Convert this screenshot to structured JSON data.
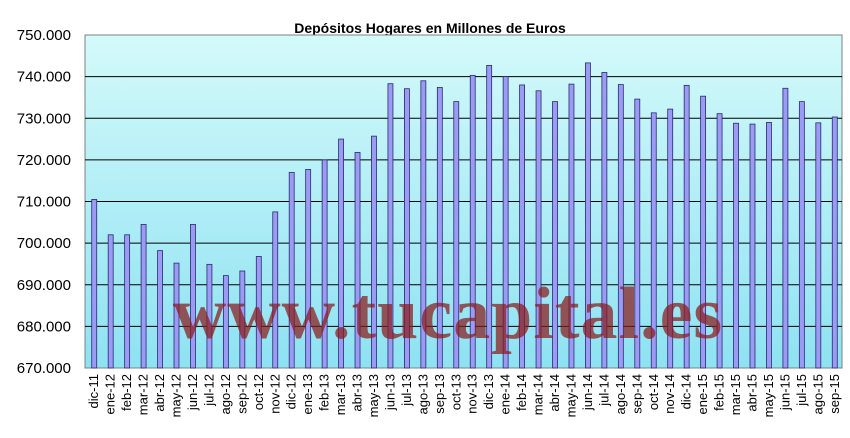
{
  "watermark": "www.tucapital.es",
  "colors": {
    "plot_bg_top": "#d4fafa",
    "plot_bg_bottom": "#8ee2f2",
    "bar_fill": "#9b9bf5",
    "bar_stroke": "#2a2a70",
    "watermark": "#8b1a1a"
  },
  "chart_data": {
    "type": "bar",
    "title": "Depósitos Hogares en Millones de Euros",
    "xlabel": "",
    "ylabel": "",
    "ylim": [
      670000,
      750000
    ],
    "yticks": [
      670000,
      680000,
      690000,
      700000,
      710000,
      720000,
      730000,
      740000,
      750000
    ],
    "ytick_labels": [
      "670.000",
      "680.000",
      "690.000",
      "700.000",
      "710.000",
      "720.000",
      "730.000",
      "740.000",
      "750.000"
    ],
    "grid": true,
    "legend": "none",
    "categories": [
      "dic-11",
      "ene-12",
      "feb-12",
      "mar-12",
      "abr-12",
      "may-12",
      "jun-12",
      "jul-12",
      "ago-12",
      "sep-12",
      "oct-12",
      "nov-12",
      "dic-12",
      "ene-13",
      "feb-13",
      "mar-13",
      "abr-13",
      "may-13",
      "jun-13",
      "jul-13",
      "ago-13",
      "sep-13",
      "oct-13",
      "nov-13",
      "dic-13",
      "ene-14",
      "feb-14",
      "mar-14",
      "abr-14",
      "may-14",
      "jun-14",
      "jul-14",
      "ago-14",
      "sep-14",
      "oct-14",
      "nov-14",
      "dic-14",
      "ene-15",
      "feb-15",
      "mar-15",
      "abr-15",
      "may-15",
      "jun-15",
      "jul-15",
      "ago-15",
      "sep-15"
    ],
    "values": [
      710500,
      702000,
      702000,
      704500,
      698200,
      695200,
      704500,
      694900,
      692200,
      693300,
      696800,
      707500,
      717000,
      717700,
      720000,
      725000,
      721800,
      725700,
      738300,
      737100,
      739000,
      737400,
      734000,
      740300,
      742700,
      740000,
      738000,
      736600,
      734000,
      738200,
      743300,
      741000,
      738100,
      734600,
      731300,
      732200,
      737900,
      735300,
      731100,
      728800,
      728600,
      729000,
      737200,
      734000,
      728900,
      730300
    ]
  }
}
